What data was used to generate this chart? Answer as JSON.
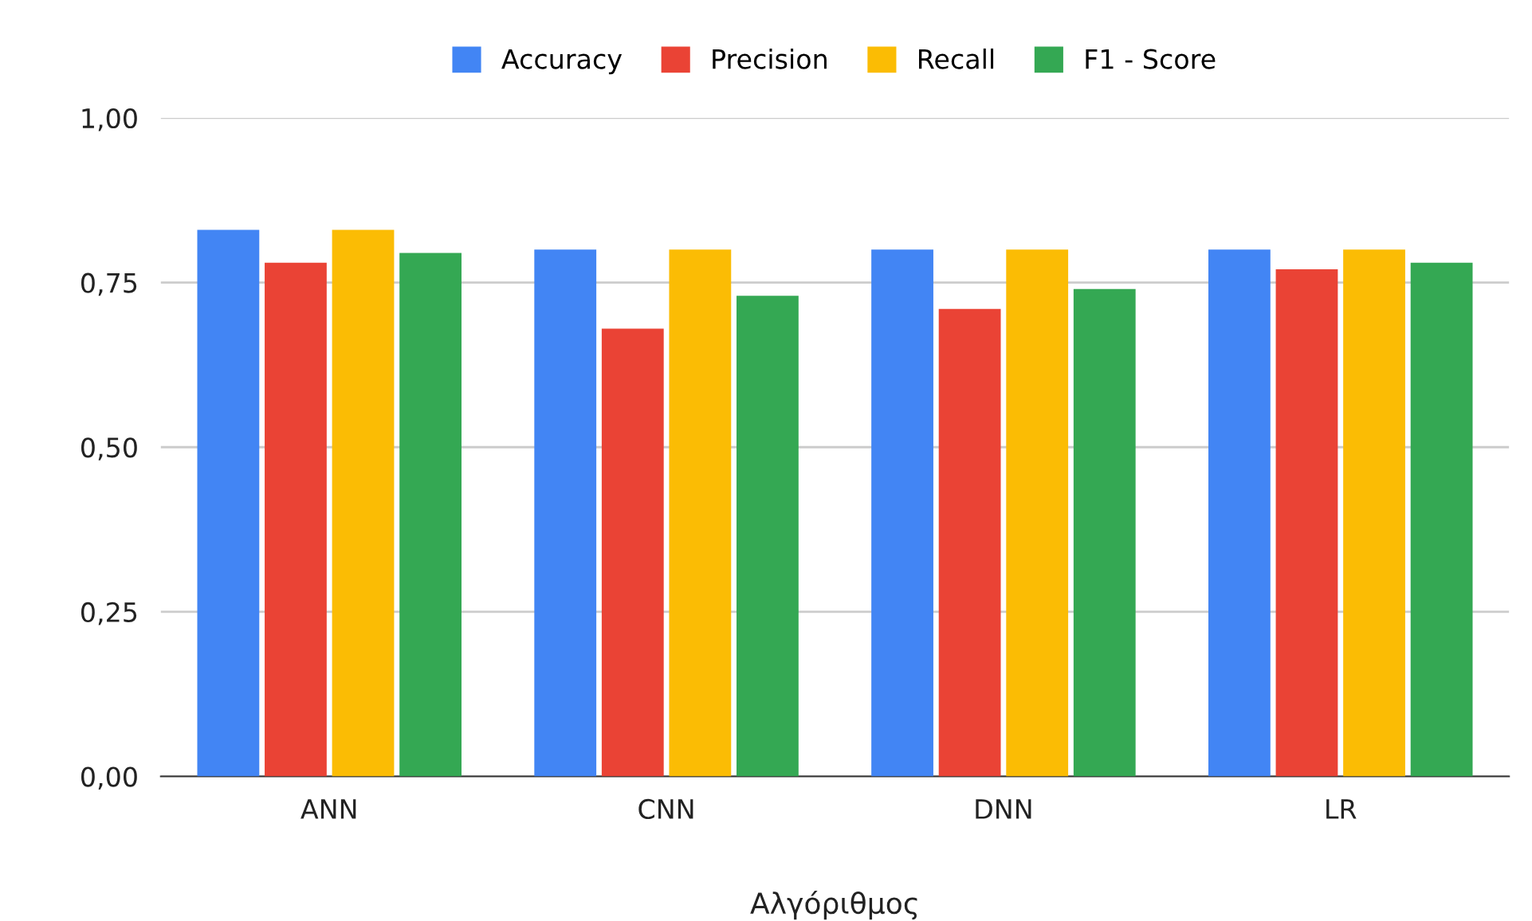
{
  "chart_data": {
    "type": "bar",
    "xlabel": "Αλγόριθμος",
    "categories": [
      "ANN",
      "CNN",
      "DNN",
      "LR"
    ],
    "series": [
      {
        "name": "Accuracy",
        "color": "#4285f4",
        "values": [
          0.83,
          0.8,
          0.8,
          0.8
        ]
      },
      {
        "name": "Precision",
        "color": "#ea4335",
        "values": [
          0.78,
          0.68,
          0.71,
          0.77
        ]
      },
      {
        "name": "Recall",
        "color": "#fbbc04",
        "values": [
          0.83,
          0.8,
          0.8,
          0.8
        ]
      },
      {
        "name": "F1 - Score",
        "color": "#34a853",
        "values": [
          0.795,
          0.73,
          0.74,
          0.78
        ]
      }
    ],
    "ylim": [
      0,
      1
    ],
    "yticks": [
      {
        "value": 0,
        "label": "0,00"
      },
      {
        "value": 0.25,
        "label": "0,25"
      },
      {
        "value": 0.5,
        "label": "0,50"
      },
      {
        "value": 0.75,
        "label": "0,75"
      },
      {
        "value": 1,
        "label": "1,00"
      }
    ],
    "grid": "y",
    "legend": "top"
  }
}
